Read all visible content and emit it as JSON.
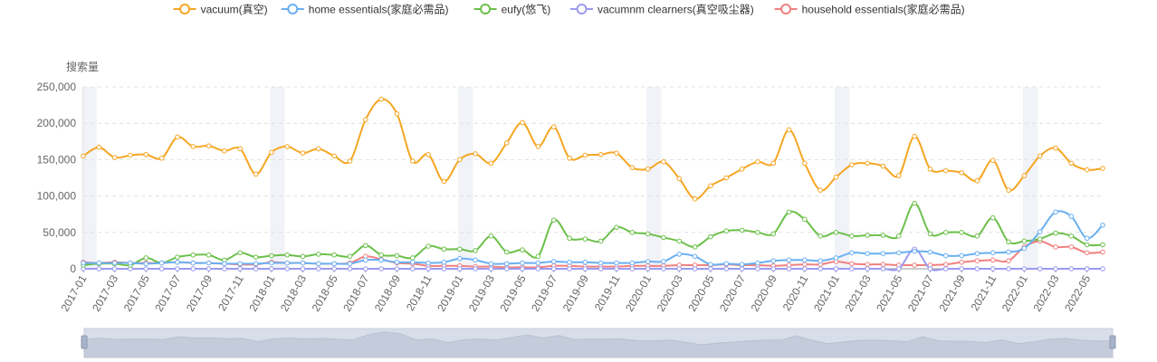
{
  "chart_data": {
    "type": "line",
    "ylabel": "搜索量",
    "ylim": [
      0,
      250000
    ],
    "yticks": [
      0,
      50000,
      100000,
      150000,
      200000,
      250000
    ],
    "ytick_labels": [
      "0",
      "50,000",
      "100,000",
      "150,000",
      "200,000",
      "250,000"
    ],
    "xtick_labels": [
      "2017-01",
      "2017-03",
      "2017-05",
      "2017-07",
      "2017-09",
      "2017-11",
      "2018-01",
      "2018-03",
      "2018-05",
      "2018-07",
      "2018-09",
      "2018-11",
      "2019-01",
      "2019-03",
      "2019-05",
      "2019-07",
      "2019-09",
      "2019-11",
      "2020-01",
      "2020-03",
      "2020-05",
      "2020-07",
      "2020-09",
      "2020-11",
      "2021-01",
      "2021-03",
      "2021-05",
      "2021-07",
      "2021-09",
      "2021-11",
      "2022-01",
      "2022-03",
      "2022-05"
    ],
    "x": [
      "2017-01",
      "2017-02",
      "2017-03",
      "2017-04",
      "2017-05",
      "2017-06",
      "2017-07",
      "2017-08",
      "2017-09",
      "2017-10",
      "2017-11",
      "2017-12",
      "2018-01",
      "2018-02",
      "2018-03",
      "2018-04",
      "2018-05",
      "2018-06",
      "2018-07",
      "2018-08",
      "2018-09",
      "2018-10",
      "2018-11",
      "2018-12",
      "2019-01",
      "2019-02",
      "2019-03",
      "2019-04",
      "2019-05",
      "2019-06",
      "2019-07",
      "2019-08",
      "2019-09",
      "2019-10",
      "2019-11",
      "2019-12",
      "2020-01",
      "2020-02",
      "2020-03",
      "2020-04",
      "2020-05",
      "2020-06",
      "2020-07",
      "2020-08",
      "2020-09",
      "2020-10",
      "2020-11",
      "2020-12",
      "2021-01",
      "2021-02",
      "2021-03",
      "2021-04",
      "2021-05",
      "2021-06",
      "2021-07",
      "2021-08",
      "2021-09",
      "2021-10",
      "2021-11",
      "2021-12",
      "2022-01",
      "2022-02",
      "2022-03",
      "2022-04",
      "2022-05",
      "2022-06"
    ],
    "grid": true,
    "legend_position": "top",
    "series": [
      {
        "name": "vacuum(真空)",
        "color": "#F5A623",
        "values": [
          155000,
          167000,
          153000,
          156000,
          157000,
          152000,
          181000,
          168000,
          169000,
          162000,
          165000,
          130000,
          160000,
          168000,
          159000,
          165000,
          155000,
          148000,
          205000,
          233000,
          213000,
          148000,
          157000,
          120000,
          150000,
          158000,
          145000,
          173000,
          201000,
          168000,
          195000,
          152000,
          156000,
          157000,
          159000,
          139000,
          137000,
          147000,
          124000,
          96000,
          114000,
          125000,
          137000,
          147000,
          145000,
          191000,
          145000,
          108000,
          126000,
          143000,
          145000,
          141000,
          128000,
          182000,
          137000,
          135000,
          132000,
          121000,
          149000,
          108000,
          128000,
          155000,
          166000,
          145000,
          136000,
          138000
        ]
      },
      {
        "name": "home essentials(家庭必需品)",
        "color": "#6AB0F2",
        "values": [
          8000,
          8000,
          8000,
          8000,
          7000,
          8000,
          9000,
          8000,
          8000,
          7000,
          7000,
          7000,
          8000,
          8000,
          8000,
          7000,
          7000,
          7000,
          12000,
          12000,
          9000,
          9000,
          8000,
          9000,
          14000,
          12000,
          7000,
          7000,
          8000,
          8000,
          10000,
          9000,
          9000,
          8000,
          8000,
          8000,
          10000,
          10000,
          20000,
          17000,
          6000,
          7000,
          6000,
          8000,
          11000,
          12000,
          12000,
          11000,
          15000,
          22000,
          21000,
          21000,
          22000,
          24000,
          23000,
          18000,
          18000,
          21000,
          22000,
          23000,
          28000,
          51000,
          78000,
          72000,
          42000,
          60000
        ]
      },
      {
        "name": "eufy(悠飞)",
        "color": "#6CC04A",
        "values": [
          5000,
          7000,
          7000,
          5000,
          15000,
          8000,
          16000,
          19000,
          19000,
          12000,
          22000,
          16000,
          18000,
          19000,
          17000,
          20000,
          19000,
          17000,
          32000,
          19000,
          18000,
          15000,
          31000,
          27000,
          27000,
          25000,
          45000,
          23000,
          26000,
          17000,
          67000,
          42000,
          41000,
          38000,
          57000,
          50000,
          48000,
          43000,
          38000,
          30000,
          44000,
          52000,
          53000,
          50000,
          48000,
          78000,
          68000,
          45000,
          50000,
          45000,
          46000,
          46000,
          45000,
          90000,
          48000,
          50000,
          50000,
          45000,
          70000,
          37000,
          38000,
          41000,
          49000,
          45000,
          33000,
          33000
        ]
      },
      {
        "name": "vacumnm clearners(真空吸尘器)",
        "color": "#9B9BF0",
        "values": [
          0,
          0,
          0,
          0,
          0,
          0,
          0,
          0,
          0,
          0,
          0,
          0,
          0,
          0,
          0,
          0,
          0,
          0,
          0,
          0,
          0,
          0,
          0,
          0,
          0,
          0,
          0,
          0,
          0,
          0,
          0,
          0,
          0,
          0,
          0,
          0,
          0,
          0,
          0,
          0,
          0,
          0,
          0,
          0,
          0,
          0,
          0,
          0,
          0,
          0,
          0,
          0,
          0,
          27000,
          0,
          0,
          0,
          0,
          0,
          0,
          0,
          0,
          0,
          0,
          0,
          0
        ]
      },
      {
        "name": "household essentials(家庭必需品)",
        "color": "#F08080",
        "values": [
          9000,
          8000,
          9000,
          8000,
          8000,
          8000,
          9000,
          8000,
          8000,
          7000,
          6000,
          6000,
          9000,
          8000,
          8000,
          7000,
          7000,
          8000,
          17000,
          13000,
          8000,
          7000,
          4000,
          4000,
          4000,
          3000,
          3000,
          2000,
          2000,
          2000,
          4000,
          4000,
          3000,
          3000,
          3000,
          4000,
          4000,
          4000,
          5000,
          5000,
          5000,
          6000,
          5000,
          5000,
          4000,
          5000,
          6000,
          6000,
          10000,
          7000,
          6000,
          6000,
          5000,
          5000,
          5000,
          6000,
          9000,
          11000,
          12000,
          11000,
          30000,
          38000,
          30000,
          30000,
          22000,
          23000
        ]
      }
    ]
  }
}
